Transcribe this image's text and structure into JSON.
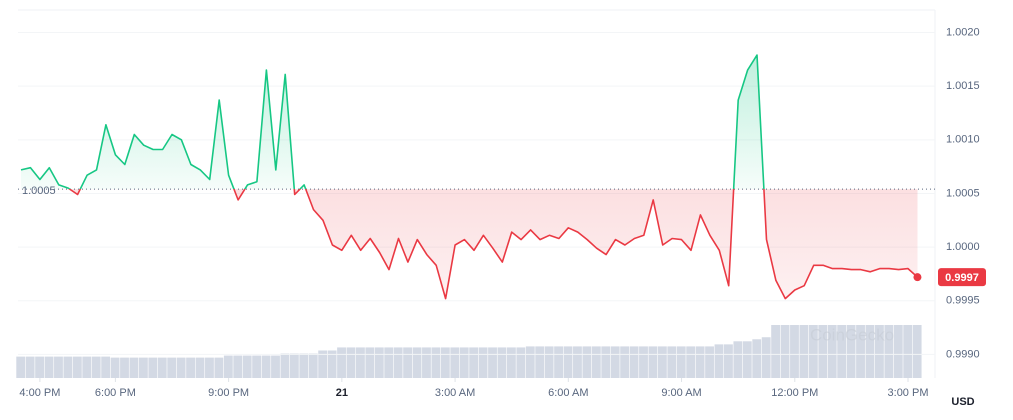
{
  "chart_data": {
    "type": "line",
    "x": [
      15.5,
      15.75,
      16,
      16.25,
      16.5,
      16.75,
      17,
      17.25,
      17.5,
      17.75,
      18,
      18.25,
      18.5,
      18.75,
      19,
      19.25,
      19.5,
      19.75,
      20,
      20.25,
      20.5,
      20.75,
      21,
      21.25,
      21.5,
      21.75,
      22,
      22.25,
      22.5,
      22.75,
      23,
      23.25,
      23.5,
      23.75,
      24,
      24.25,
      24.5,
      24.75,
      25,
      25.25,
      25.5,
      25.75,
      26,
      26.25,
      26.5,
      26.75,
      27,
      27.25,
      27.5,
      27.75,
      28,
      28.25,
      28.5,
      28.75,
      29,
      29.25,
      29.5,
      29.75,
      30,
      30.25,
      30.5,
      30.75,
      31,
      31.25,
      31.5,
      31.75,
      32,
      32.25,
      32.5,
      32.75,
      33,
      33.25,
      33.5,
      33.75,
      34,
      34.25,
      34.5,
      34.75,
      35,
      35.25,
      35.5,
      35.75,
      36,
      36.25,
      36.5,
      36.75,
      37,
      37.25,
      37.5,
      37.75,
      38,
      38.25,
      38.5,
      38.75,
      39,
      39.25
    ],
    "values": [
      1.00072,
      1.00074,
      1.00063,
      1.00074,
      1.00058,
      1.00055,
      1.00049,
      1.00067,
      1.00072,
      1.00114,
      1.00086,
      1.00077,
      1.00105,
      1.00095,
      1.00091,
      1.00091,
      1.00105,
      1.001,
      1.00077,
      1.00072,
      1.00063,
      1.00137,
      1.00067,
      1.00044,
      1.00058,
      1.00061,
      1.00165,
      1.00072,
      1.00161,
      1.00049,
      1.00058,
      1.00035,
      1.00025,
      1.00002,
      0.99997,
      1.00011,
      0.99997,
      1.00008,
      0.99995,
      0.99979,
      1.00008,
      0.99986,
      1.00007,
      0.99993,
      0.99983,
      0.99952,
      1.00002,
      1.00007,
      0.99997,
      1.00011,
      0.99999,
      0.99986,
      1.00014,
      1.00007,
      1.00016,
      1.00007,
      1.00011,
      1.00008,
      1.00018,
      1.00014,
      1.00007,
      0.99999,
      0.99993,
      1.00007,
      1.00002,
      1.00008,
      1.00011,
      1.00044,
      1.00002,
      1.00008,
      1.00007,
      0.99997,
      1.0003,
      1.00011,
      0.99997,
      0.99964,
      1.00137,
      1.00165,
      1.00179,
      1.00007,
      0.99969,
      0.99952,
      0.9996,
      0.99964,
      0.99983,
      0.99983,
      0.9998,
      0.9998,
      0.99979,
      0.99979,
      0.99977,
      0.9998,
      0.9998,
      0.99979,
      0.9998,
      0.99972
    ],
    "volume": [
      21,
      21,
      21,
      21,
      21,
      21,
      21,
      21,
      21,
      21,
      20,
      20,
      20,
      20,
      20,
      20,
      20,
      20,
      20,
      20,
      20,
      20,
      22,
      22,
      22,
      22,
      22,
      22,
      24,
      24,
      24,
      24,
      27,
      27,
      30,
      30,
      30,
      30,
      30,
      30,
      30,
      30,
      30,
      30,
      30,
      30,
      30,
      30,
      30,
      30,
      30,
      30,
      30,
      30,
      31,
      31,
      31,
      31,
      31,
      31,
      31,
      31,
      31,
      31,
      31,
      31,
      31,
      31,
      31,
      31,
      31,
      31,
      31,
      31,
      33,
      33,
      36,
      36,
      38,
      40,
      52,
      52,
      52,
      52,
      52,
      52,
      52,
      52,
      52,
      52,
      52,
      52,
      52,
      52,
      52,
      52
    ],
    "up_color": "#16c784",
    "down_color": "#ea3943",
    "volume_color": "#d3d9e4",
    "baseline": {
      "value": 1.00054,
      "label": "1.0005"
    },
    "current_price": {
      "value": 0.99972,
      "label": "0.9997"
    },
    "xlim": [
      15.42,
      39.45
    ],
    "xticks": [
      {
        "value": 16,
        "label": "4:00 PM"
      },
      {
        "value": 18,
        "label": "6:00 PM"
      },
      {
        "value": 21,
        "label": "9:00 PM"
      },
      {
        "value": 24,
        "label": "21"
      },
      {
        "value": 27,
        "label": "3:00 AM"
      },
      {
        "value": 30,
        "label": "6:00 AM"
      },
      {
        "value": 33,
        "label": "9:00 AM"
      },
      {
        "value": 36,
        "label": "12:00 PM"
      },
      {
        "value": 39,
        "label": "3:00 PM"
      }
    ],
    "ylim": [
      0.99878,
      1.00221
    ],
    "yticks": [
      {
        "value": 0.999,
        "label": "0.9990"
      },
      {
        "value": 0.9995,
        "label": "0.9995"
      },
      {
        "value": 1.0,
        "label": "1.0000"
      },
      {
        "value": 1.0005,
        "label": "1.0005"
      },
      {
        "value": 1.001,
        "label": "1.0010"
      },
      {
        "value": 1.0015,
        "label": "1.0015"
      },
      {
        "value": 1.002,
        "label": "1.0020"
      }
    ],
    "grid": true,
    "currency": "USD",
    "watermark": "CoinGecko"
  }
}
